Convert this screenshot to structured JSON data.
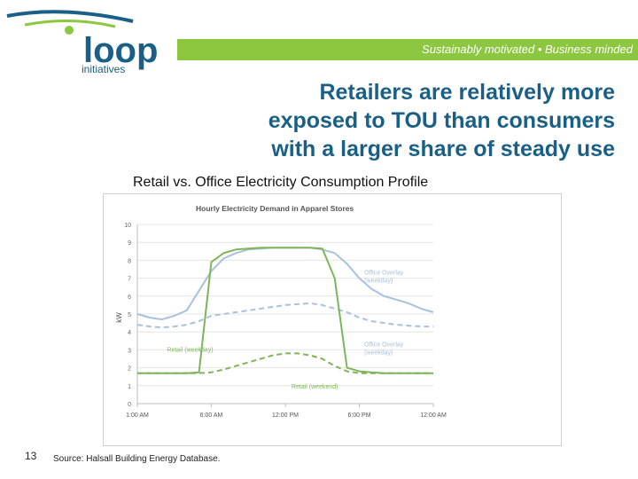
{
  "header": {
    "logo_word": "loop",
    "logo_sub": "initiatives",
    "tagline": "Sustainably motivated • Business minded",
    "brand_blue": "#1a5f86",
    "brand_green": "#8dc63f"
  },
  "headline": {
    "line1": "Retailers are relatively more",
    "line2": "exposed to TOU than consumers",
    "line3": "with a larger share of steady use"
  },
  "chart_caption": "Retail vs. Office Electricity Consumption Profile",
  "chart_data": {
    "type": "line",
    "title": "Hourly Electricity Demand in Apparel Stores",
    "ylabel": "kW",
    "xlabel": "",
    "ylim": [
      0,
      10
    ],
    "xlim": [
      1,
      25
    ],
    "y_ticks": [
      "0",
      "1",
      "2",
      "3",
      "4",
      "5",
      "6",
      "7",
      "8",
      "9",
      "10"
    ],
    "x_ticks": [
      {
        "x": 1,
        "label": "1:00 AM"
      },
      {
        "x": 7,
        "label": "6:00 AM"
      },
      {
        "x": 13,
        "label": "12:00 PM"
      },
      {
        "x": 19,
        "label": "6:00 PM"
      },
      {
        "x": 25,
        "label": "12:00 AM"
      }
    ],
    "grid": true,
    "series": [
      {
        "name": "Office Overlay (weekday)",
        "style": "solid",
        "color": "#a9c1dc",
        "x": [
          1,
          2,
          3,
          4,
          5,
          6,
          7,
          8,
          9,
          10,
          11,
          12,
          13,
          14,
          15,
          16,
          17,
          18,
          19,
          20,
          21,
          22,
          23,
          24,
          25
        ],
        "y": [
          5.0,
          4.8,
          4.7,
          4.9,
          5.2,
          6.3,
          7.4,
          8.1,
          8.4,
          8.6,
          8.65,
          8.7,
          8.7,
          8.7,
          8.7,
          8.6,
          8.4,
          7.8,
          7.0,
          6.4,
          6.0,
          5.8,
          5.6,
          5.3,
          5.1
        ]
      },
      {
        "name": "Office Overlay (weekday)",
        "style": "dashed",
        "color": "#a9c1dc",
        "x": [
          1,
          2,
          3,
          4,
          5,
          6,
          7,
          8,
          9,
          10,
          11,
          12,
          13,
          14,
          15,
          16,
          17,
          18,
          19,
          20,
          21,
          22,
          23,
          24,
          25
        ],
        "y": [
          4.4,
          4.3,
          4.25,
          4.3,
          4.4,
          4.6,
          4.9,
          5.0,
          5.1,
          5.2,
          5.3,
          5.4,
          5.5,
          5.55,
          5.6,
          5.5,
          5.3,
          5.1,
          4.8,
          4.6,
          4.5,
          4.4,
          4.35,
          4.3,
          4.3
        ]
      },
      {
        "name": "Retail (weekday)",
        "style": "solid",
        "color": "#7fb55a",
        "x": [
          1,
          2,
          3,
          4,
          5,
          6,
          7,
          8,
          9,
          10,
          11,
          12,
          13,
          14,
          15,
          16,
          17,
          18,
          19,
          20,
          21,
          22,
          23,
          24,
          25
        ],
        "y": [
          1.7,
          1.7,
          1.7,
          1.7,
          1.7,
          1.75,
          7.9,
          8.4,
          8.6,
          8.65,
          8.7,
          8.7,
          8.7,
          8.7,
          8.7,
          8.65,
          7.0,
          2.0,
          1.8,
          1.75,
          1.7,
          1.7,
          1.7,
          1.7,
          1.7
        ]
      },
      {
        "name": "Retail (weekend)",
        "style": "dashed",
        "color": "#7fb55a",
        "x": [
          1,
          2,
          3,
          4,
          5,
          6,
          7,
          8,
          9,
          10,
          11,
          12,
          13,
          14,
          15,
          16,
          17,
          18,
          19,
          20,
          21,
          22,
          23,
          24,
          25
        ],
        "y": [
          1.7,
          1.7,
          1.7,
          1.7,
          1.7,
          1.7,
          1.75,
          1.9,
          2.1,
          2.3,
          2.5,
          2.7,
          2.8,
          2.8,
          2.7,
          2.5,
          2.1,
          1.8,
          1.7,
          1.7,
          1.7,
          1.7,
          1.7,
          1.7,
          1.7
        ]
      }
    ],
    "annotations": [
      {
        "text": "Office Overlay",
        "text2": "(weekday)",
        "x": 19.4,
        "y": 7.2,
        "color": "#a9c1dc"
      },
      {
        "text": "Office Overlay",
        "text2": "(weekday)",
        "x": 19.4,
        "y": 3.2,
        "color": "#a9c1dc"
      },
      {
        "text": "Retail (weekday)",
        "text2": "",
        "x": 3.4,
        "y": 2.9,
        "color": "#7fb55a"
      },
      {
        "text": "Retail (weekend)",
        "text2": "",
        "x": 13.5,
        "y": 0.85,
        "color": "#7fb55a"
      }
    ]
  },
  "footer": {
    "page_number": "13",
    "source": "Source: Halsall Building Energy Database."
  }
}
